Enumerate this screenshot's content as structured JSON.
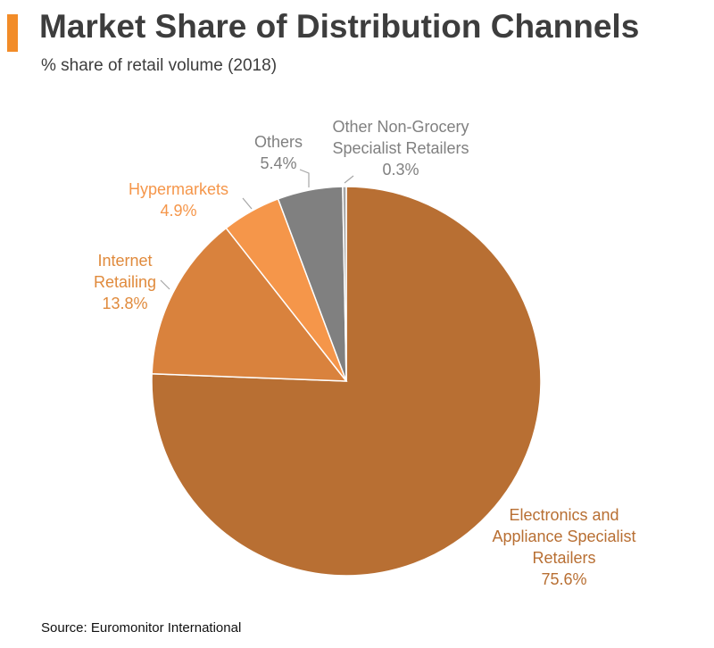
{
  "header": {
    "title": "Market Share of Distribution Channels",
    "subtitle": "% share of retail volume (2018)",
    "accent_color": "#f28c28"
  },
  "chart_data": {
    "type": "pie",
    "title": "Market Share of Distribution Channels",
    "subtitle": "% share of retail volume (2018)",
    "unit": "%",
    "slices": [
      {
        "label_lines": [
          "Electronics and",
          "Appliance Specialist",
          "Retailers"
        ],
        "value": 75.6,
        "value_label": "75.6%",
        "color": "#b86f33",
        "label_color": "#b86f33"
      },
      {
        "label_lines": [
          "Internet",
          "Retailing"
        ],
        "value": 13.8,
        "value_label": "13.8%",
        "color": "#d9823d",
        "label_color": "#e08a3c"
      },
      {
        "label_lines": [
          "Hypermarkets"
        ],
        "value": 4.9,
        "value_label": "4.9%",
        "color": "#f5964a",
        "label_color": "#f5964a"
      },
      {
        "label_lines": [
          "Others"
        ],
        "value": 5.4,
        "value_label": "5.4%",
        "color": "#808080",
        "label_color": "#808080"
      },
      {
        "label_lines": [
          "Other Non-Grocery",
          "Specialist Retailers"
        ],
        "value": 0.3,
        "value_label": "0.3%",
        "color": "#a6a6a6",
        "label_color": "#808080"
      }
    ]
  },
  "footer": {
    "source": "Source: Euromonitor International"
  }
}
